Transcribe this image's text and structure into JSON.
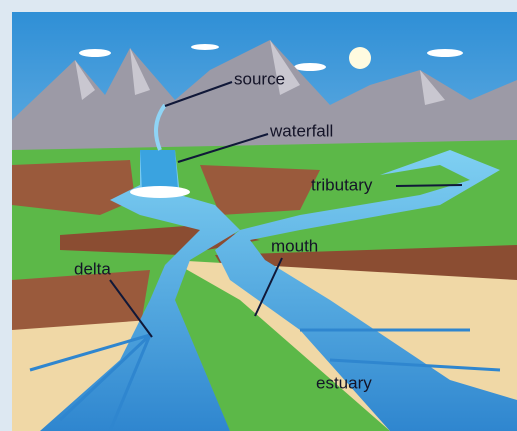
{
  "labels": [
    "source",
    "waterfall",
    "tributary",
    "mouth",
    "delta",
    "estuary"
  ]
}
